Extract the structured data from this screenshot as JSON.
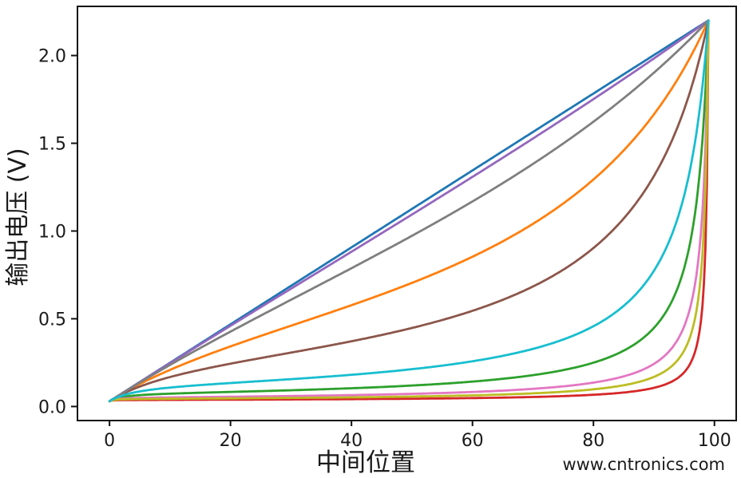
{
  "figure": {
    "background": "#ffffff",
    "axis_color": "#111111",
    "tick_label_color": "#1a1a1a",
    "watermark": {
      "text": "www.cntronics.com",
      "color": "#aadcaa"
    }
  },
  "chart_data": {
    "type": "line",
    "title": "",
    "xlabel": "中间位置",
    "ylabel": "输出电压 (V)",
    "grid": false,
    "legend": "none",
    "xlim": [
      -5.3,
      103.6
    ],
    "ylim": [
      -0.08,
      2.28
    ],
    "x_ticks": [
      0,
      20,
      40,
      60,
      80,
      100
    ],
    "x_tick_labels": [
      "0",
      "20",
      "40",
      "60",
      "80",
      "100"
    ],
    "y_ticks": [
      0,
      0.5,
      1,
      1.5,
      2
    ],
    "y_tick_labels": [
      "0.0",
      "0.5",
      "1.0",
      "1.5",
      "2.0"
    ],
    "model_formula": "v(x) = v0 + (vmax - v0) * a / (1 + k*a*(1-a)), a = x / x_end  (potentiometer loading curves)",
    "model_params": {
      "v0": 0.03,
      "vmax": 2.2,
      "x_end": 99
    },
    "x_samples": [
      0,
      10,
      20,
      30,
      40,
      50,
      60,
      70,
      80,
      90,
      99
    ],
    "series": [
      {
        "name": "blue",
        "color": "#1f77b4",
        "k": 0,
        "values": [
          0.03,
          0.249,
          0.468,
          0.688,
          0.907,
          1.126,
          1.345,
          1.564,
          1.784,
          2.003,
          2.2
        ]
      },
      {
        "name": "orange",
        "color": "#ff7f0e",
        "k": 2.5,
        "values": [
          0.03,
          0.209,
          0.342,
          0.46,
          0.577,
          0.704,
          0.854,
          1.041,
          1.294,
          1.665,
          2.2
        ]
      },
      {
        "name": "green",
        "color": "#2ca02c",
        "k": 45,
        "values": [
          0.03,
          0.073,
          0.083,
          0.093,
          0.104,
          0.119,
          0.142,
          0.179,
          0.25,
          0.448,
          2.2
        ]
      },
      {
        "name": "red",
        "color": "#d62728",
        "k": 300,
        "values": [
          0.03,
          0.038,
          0.039,
          0.04,
          0.042,
          0.044,
          0.048,
          0.054,
          0.067,
          0.107,
          2.2
        ]
      },
      {
        "name": "purple",
        "color": "#9467bd",
        "k": 0.12,
        "values": [
          0.03,
          0.247,
          0.46,
          0.671,
          0.882,
          1.094,
          1.309,
          1.527,
          1.752,
          1.983,
          2.2
        ]
      },
      {
        "name": "brown",
        "color": "#8c564b",
        "k": 6.5,
        "values": [
          0.03,
          0.168,
          0.244,
          0.307,
          0.372,
          0.448,
          0.545,
          0.684,
          0.903,
          1.313,
          2.2
        ]
      },
      {
        "name": "pink",
        "color": "#e377c2",
        "k": 100,
        "values": [
          0.03,
          0.052,
          0.056,
          0.06,
          0.065,
          0.072,
          0.083,
          0.101,
          0.136,
          0.243,
          2.2
        ]
      },
      {
        "name": "gray",
        "color": "#7f7f7f",
        "k": 0.65,
        "values": [
          0.03,
          0.237,
          0.427,
          0.608,
          0.788,
          0.973,
          1.168,
          1.382,
          1.623,
          1.902,
          2.2
        ]
      },
      {
        "name": "olive",
        "color": "#bcbd22",
        "k": 160,
        "values": [
          0.03,
          0.044,
          0.046,
          0.049,
          0.052,
          0.057,
          0.064,
          0.075,
          0.098,
          0.169,
          2.2
        ]
      },
      {
        "name": "cyan",
        "color": "#17becf",
        "k": 20,
        "values": [
          0.03,
          0.108,
          0.134,
          0.156,
          0.181,
          0.213,
          0.258,
          0.328,
          0.458,
          0.774,
          2.2
        ]
      }
    ]
  }
}
